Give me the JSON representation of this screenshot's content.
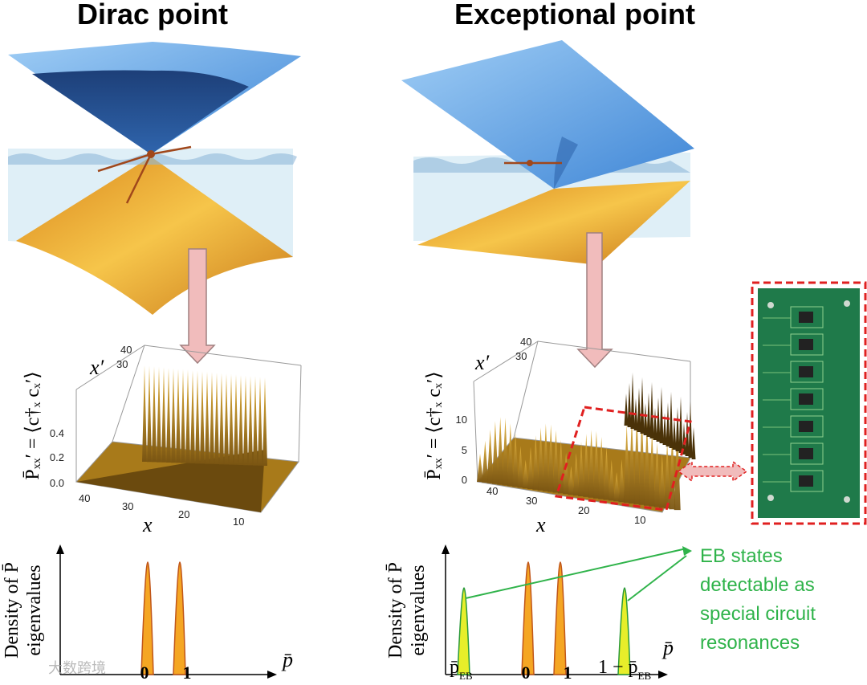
{
  "titles": [
    "Dirac point",
    "Exceptional point"
  ],
  "left_plot": {
    "z_label": "P̄ₓₓ′ = ⟨c†ₓ cₓ′⟩",
    "z_ticks": [
      "0.0",
      "0.2",
      "0.4"
    ],
    "x_label": "x",
    "x_ticks": [
      "40",
      "30",
      "20",
      "10"
    ],
    "xp_label": "x′",
    "xp_ticks": [
      "40",
      "30"
    ]
  },
  "right_plot": {
    "z_label": "P̄ₓₓ′ = ⟨c†ₓ cₓ′⟩",
    "z_ticks": [
      "0",
      "5",
      "10"
    ],
    "x_label": "x",
    "x_ticks": [
      "40",
      "30",
      "20",
      "10"
    ],
    "xp_label": "x′",
    "xp_ticks": [
      "40",
      "30"
    ]
  },
  "left_density": {
    "y_label": [
      "Density of P̄",
      "eigenvalues"
    ],
    "x_label": "p̄",
    "x_ticks": [
      "0",
      "1"
    ]
  },
  "right_density": {
    "y_label": [
      "Density of P̄",
      "eigenvalues"
    ],
    "x_label": "p̄",
    "x_ticks": [
      {
        "main": "p̄",
        "sub": "EB"
      },
      "0",
      "1",
      {
        "main": "1 − p̄",
        "sub": "EB"
      }
    ]
  },
  "annotation": [
    "EB states",
    "detectable as",
    "special circuit",
    "resonances"
  ],
  "watermark": "大数跨境"
}
